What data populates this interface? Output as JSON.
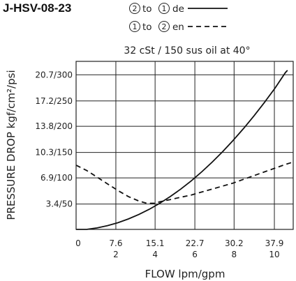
{
  "model_label": "J-HSV-08-23",
  "legend": [
    {
      "from": "2",
      "to": "1",
      "joiner": "to",
      "suffix": "de"
    },
    {
      "from": "1",
      "to": "2",
      "joiner": "to",
      "suffix": "en"
    }
  ],
  "chart_data": {
    "type": "line",
    "subtitle": "32 cSt / 150 sus oil at 40°",
    "xlabel": "FLOW lpm/gpm",
    "ylabel": "PRESSURE DROP kgf/cm²/psi",
    "xlim": [
      0,
      41.5
    ],
    "ylim": [
      0,
      22.5
    ],
    "x_ticks": [
      {
        "value": 0,
        "lpm": "0",
        "gpm": ""
      },
      {
        "value": 7.6,
        "lpm": "7.6",
        "gpm": "2"
      },
      {
        "value": 15.1,
        "lpm": "15.1",
        "gpm": "4"
      },
      {
        "value": 22.7,
        "lpm": "22.7",
        "gpm": "6"
      },
      {
        "value": 30.2,
        "lpm": "30.2",
        "gpm": "8"
      },
      {
        "value": 37.9,
        "lpm": "37.9",
        "gpm": "10"
      }
    ],
    "y_ticks": [
      {
        "value": 3.4,
        "label": "3.4/50"
      },
      {
        "value": 6.9,
        "label": "6.9/100"
      },
      {
        "value": 10.3,
        "label": "10.3/150"
      },
      {
        "value": 13.8,
        "label": "13.8/200"
      },
      {
        "value": 17.2,
        "label": "17.2/250"
      },
      {
        "value": 20.7,
        "label": "20.7/300"
      }
    ],
    "grid": true,
    "legend_position": "top",
    "series": [
      {
        "name": "② to ① de",
        "style": "solid",
        "color": "#111111",
        "points": [
          [
            0,
            0.0
          ],
          [
            2,
            0.0
          ],
          [
            4,
            0.2
          ],
          [
            6,
            0.5
          ],
          [
            8,
            0.9
          ],
          [
            10,
            1.4
          ],
          [
            12,
            2.0
          ],
          [
            14,
            2.7
          ],
          [
            16,
            3.5
          ],
          [
            18,
            4.4
          ],
          [
            20,
            5.4
          ],
          [
            22,
            6.5
          ],
          [
            24,
            7.7
          ],
          [
            26,
            9.0
          ],
          [
            28,
            10.4
          ],
          [
            30,
            11.9
          ],
          [
            32,
            13.5
          ],
          [
            34,
            15.2
          ],
          [
            36,
            17.0
          ],
          [
            38,
            18.9
          ],
          [
            40,
            21.0
          ],
          [
            40.4,
            21.3
          ]
        ]
      },
      {
        "name": "① to ② en",
        "style": "dashed",
        "color": "#111111",
        "points": [
          [
            0,
            8.6
          ],
          [
            2,
            7.9
          ],
          [
            4,
            7.0
          ],
          [
            6,
            6.1
          ],
          [
            8,
            5.2
          ],
          [
            10,
            4.4
          ],
          [
            12,
            3.8
          ],
          [
            13.5,
            3.5
          ],
          [
            15,
            3.5
          ],
          [
            16,
            3.7
          ],
          [
            18,
            4.0
          ],
          [
            20,
            4.3
          ],
          [
            22,
            4.6
          ],
          [
            24,
            5.0
          ],
          [
            26,
            5.4
          ],
          [
            28,
            5.8
          ],
          [
            30,
            6.2
          ],
          [
            32,
            6.7
          ],
          [
            34,
            7.2
          ],
          [
            36,
            7.7
          ],
          [
            38,
            8.2
          ],
          [
            40,
            8.7
          ],
          [
            41.4,
            9.0
          ]
        ]
      }
    ]
  }
}
